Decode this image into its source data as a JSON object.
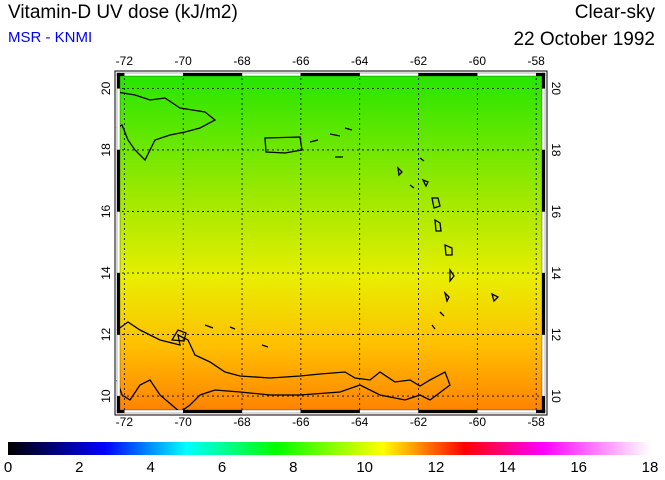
{
  "header": {
    "title": "Vitamin-D UV dose (kJ/m2)",
    "source": "MSR - KNMI",
    "condition": "Clear-sky",
    "date": "22 October 1992"
  },
  "map": {
    "lon_range": [
      -72.25,
      -57.7
    ],
    "lat_range": [
      9.45,
      20.5
    ],
    "lon_ticks": [
      "-72",
      "-70",
      "-68",
      "-66",
      "-64",
      "-62",
      "-60",
      "-58"
    ],
    "lon_values": [
      -72,
      -70,
      -68,
      -66,
      -64,
      -62,
      -60,
      -58
    ],
    "lat_ticks": [
      "10",
      "12",
      "14",
      "16",
      "18",
      "20"
    ],
    "lat_values": [
      10,
      12,
      14,
      16,
      18,
      20
    ],
    "field_colors": {
      "north": "#33e800",
      "mid": "#e6f000",
      "south": "#ff8a00"
    }
  },
  "colorbar": {
    "labels": [
      "0",
      "2",
      "4",
      "6",
      "8",
      "10",
      "12",
      "14",
      "16",
      "18"
    ],
    "range": [
      0,
      18
    ],
    "stops": [
      [
        0,
        "#000000"
      ],
      [
        2.7,
        "#0000ff"
      ],
      [
        5,
        "#00ffff"
      ],
      [
        7.5,
        "#00ff00"
      ],
      [
        10.5,
        "#ffff00"
      ],
      [
        12.8,
        "#ff0000"
      ],
      [
        15,
        "#ff00ff"
      ],
      [
        18,
        "#ffffff"
      ]
    ]
  }
}
